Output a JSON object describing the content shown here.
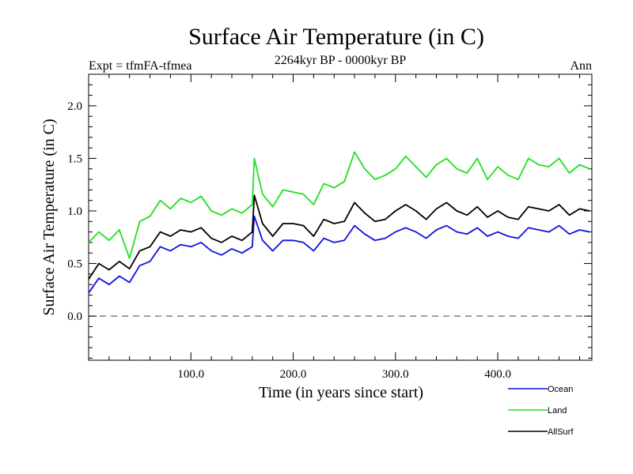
{
  "chart_data": {
    "type": "line",
    "title": "Surface Air Temperature (in C)",
    "subtitle": "2264kyr BP - 0000kyr BP",
    "left_annotation": "Expt = tfmFA-tfmea",
    "right_annotation": "Ann",
    "xlabel": "Time (in years since start)",
    "ylabel": "Surface Air Temperature (in C)",
    "xlim": [
      0,
      492
    ],
    "ylim": [
      -0.42,
      2.3
    ],
    "x_ticks": [
      {
        "value": 100,
        "label": "100.0"
      },
      {
        "value": 200,
        "label": "200.0"
      },
      {
        "value": 300,
        "label": "300.0"
      },
      {
        "value": 400,
        "label": "400.0"
      }
    ],
    "y_ticks": [
      {
        "value": 0.0,
        "label": "0.0"
      },
      {
        "value": 0.5,
        "label": "0.5"
      },
      {
        "value": 1.0,
        "label": "1.0"
      },
      {
        "value": 1.5,
        "label": "1.5"
      },
      {
        "value": 2.0,
        "label": "2.0"
      }
    ],
    "zero_line": {
      "value": 0.0,
      "style": "dashed"
    },
    "legend_position": "bottom-right",
    "series": [
      {
        "name": "Ocean",
        "color": "#1010e0",
        "x": [
          0,
          10,
          20,
          30,
          40,
          50,
          60,
          70,
          80,
          90,
          100,
          110,
          120,
          130,
          140,
          150,
          160,
          162,
          170,
          180,
          190,
          200,
          210,
          220,
          230,
          240,
          250,
          260,
          270,
          280,
          290,
          300,
          310,
          320,
          330,
          340,
          350,
          360,
          370,
          380,
          390,
          400,
          410,
          420,
          430,
          440,
          450,
          460,
          470,
          480,
          490
        ],
        "values": [
          0.22,
          0.36,
          0.3,
          0.38,
          0.32,
          0.48,
          0.52,
          0.66,
          0.62,
          0.68,
          0.66,
          0.7,
          0.62,
          0.58,
          0.64,
          0.6,
          0.66,
          0.95,
          0.72,
          0.62,
          0.72,
          0.72,
          0.7,
          0.62,
          0.74,
          0.7,
          0.72,
          0.86,
          0.78,
          0.72,
          0.74,
          0.8,
          0.84,
          0.8,
          0.74,
          0.82,
          0.86,
          0.8,
          0.78,
          0.84,
          0.76,
          0.8,
          0.76,
          0.74,
          0.84,
          0.82,
          0.8,
          0.86,
          0.78,
          0.82,
          0.8
        ]
      },
      {
        "name": "Land",
        "color": "#20e020",
        "x": [
          0,
          10,
          20,
          30,
          40,
          50,
          60,
          70,
          80,
          90,
          100,
          110,
          120,
          130,
          140,
          150,
          160,
          162,
          170,
          180,
          190,
          200,
          210,
          220,
          230,
          240,
          250,
          260,
          270,
          280,
          290,
          300,
          310,
          320,
          330,
          340,
          350,
          360,
          370,
          380,
          390,
          400,
          410,
          420,
          430,
          440,
          450,
          460,
          470,
          480,
          490
        ],
        "values": [
          0.7,
          0.8,
          0.72,
          0.82,
          0.55,
          0.9,
          0.95,
          1.1,
          1.02,
          1.12,
          1.08,
          1.14,
          1.0,
          0.96,
          1.02,
          0.98,
          1.06,
          1.5,
          1.16,
          1.04,
          1.2,
          1.18,
          1.16,
          1.06,
          1.26,
          1.22,
          1.28,
          1.56,
          1.4,
          1.3,
          1.34,
          1.4,
          1.52,
          1.42,
          1.32,
          1.44,
          1.5,
          1.4,
          1.36,
          1.5,
          1.3,
          1.42,
          1.34,
          1.3,
          1.5,
          1.44,
          1.42,
          1.5,
          1.36,
          1.44,
          1.4
        ]
      },
      {
        "name": "AllSurf",
        "color": "#000000",
        "x": [
          0,
          10,
          20,
          30,
          40,
          50,
          60,
          70,
          80,
          90,
          100,
          110,
          120,
          130,
          140,
          150,
          160,
          162,
          170,
          180,
          190,
          200,
          210,
          220,
          230,
          240,
          250,
          260,
          270,
          280,
          290,
          300,
          310,
          320,
          330,
          340,
          350,
          360,
          370,
          380,
          390,
          400,
          410,
          420,
          430,
          440,
          450,
          460,
          470,
          480,
          490
        ],
        "values": [
          0.35,
          0.5,
          0.44,
          0.52,
          0.45,
          0.62,
          0.66,
          0.8,
          0.76,
          0.82,
          0.8,
          0.84,
          0.74,
          0.7,
          0.76,
          0.72,
          0.8,
          1.15,
          0.88,
          0.76,
          0.88,
          0.88,
          0.86,
          0.76,
          0.92,
          0.88,
          0.9,
          1.08,
          0.98,
          0.9,
          0.92,
          1.0,
          1.06,
          1.0,
          0.92,
          1.02,
          1.08,
          1.0,
          0.96,
          1.04,
          0.94,
          1.0,
          0.94,
          0.92,
          1.04,
          1.02,
          1.0,
          1.06,
          0.96,
          1.02,
          1.0
        ]
      }
    ]
  }
}
